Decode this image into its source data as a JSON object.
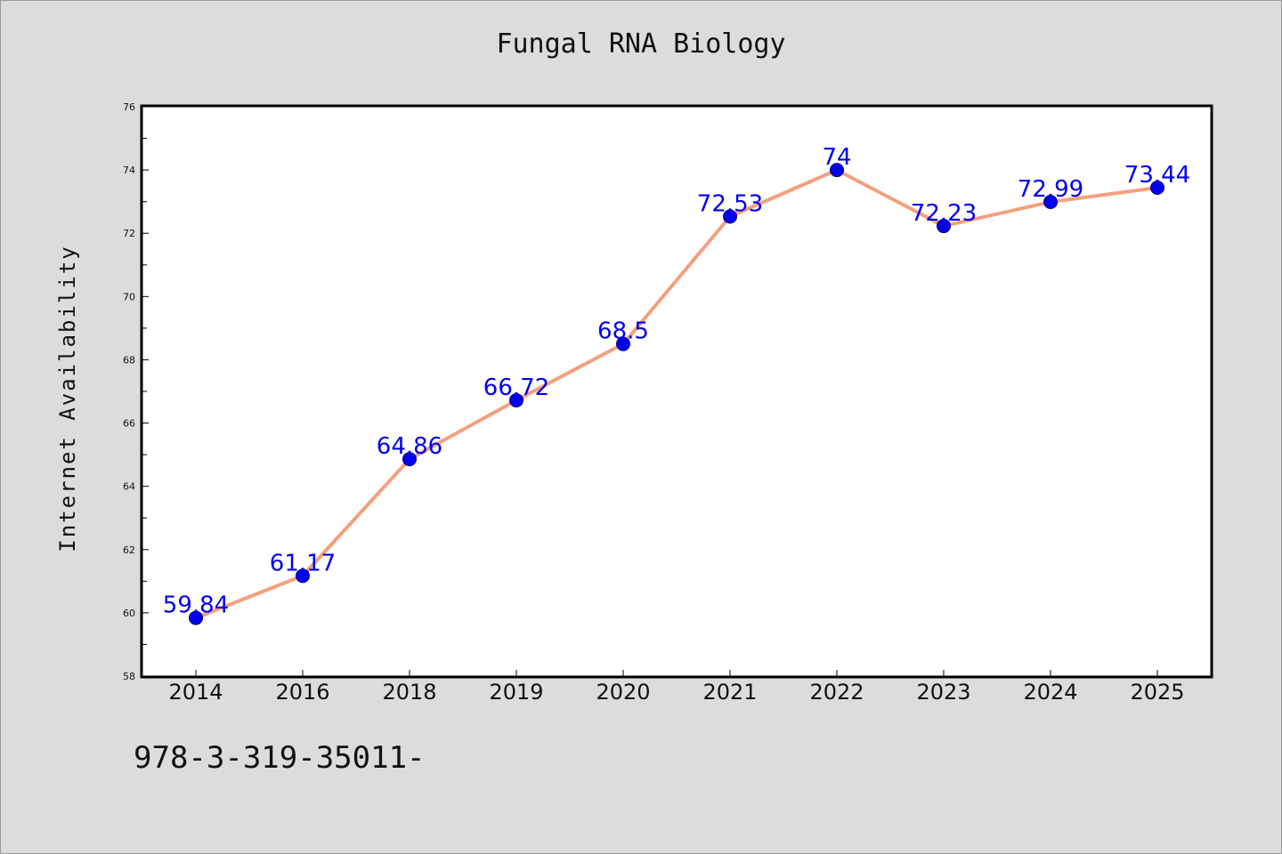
{
  "chart_data": {
    "type": "line",
    "title": "Fungal RNA Biology",
    "xlabel": "",
    "ylabel": "Internet Availability",
    "categories": [
      "2014",
      "2016",
      "2018",
      "2019",
      "2020",
      "2021",
      "2022",
      "2023",
      "2024",
      "2025"
    ],
    "series": [
      {
        "values": [
          59.84,
          61.17,
          64.86,
          66.72,
          68.5,
          72.53,
          74,
          72.23,
          72.99,
          73.44
        ],
        "labels": [
          "59.84",
          "61.17",
          "64.86",
          "66.72",
          "68.5",
          "72.53",
          "74",
          "72.23",
          "72.99",
          "73.44"
        ],
        "line_color": "#f4a07e",
        "marker_color": "#0000ee"
      }
    ],
    "ylim": [
      58,
      76
    ],
    "yticks": [
      "58",
      "60",
      "62",
      "64",
      "66",
      "68",
      "70",
      "72",
      "74",
      "76"
    ],
    "grid": false,
    "legend": "none"
  },
  "footer": {
    "code": "978-3-319-35011-"
  },
  "colors": {
    "background": "#dcdcdc",
    "plot_background": "#ffffff"
  }
}
